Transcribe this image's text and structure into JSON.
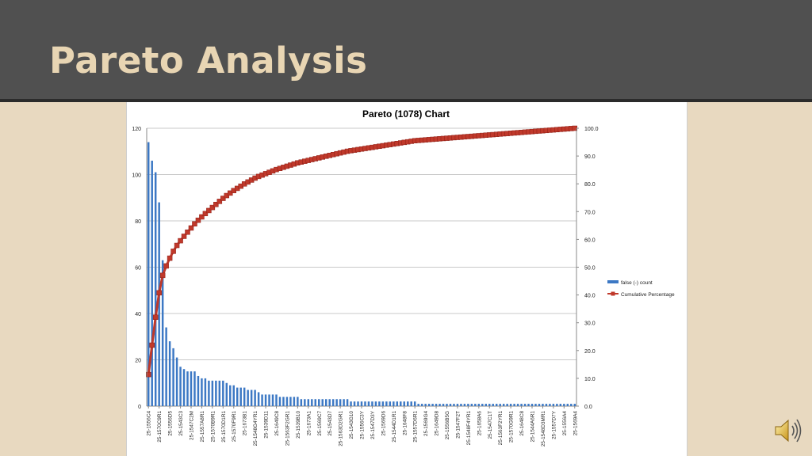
{
  "slide": {
    "title": "Pareto Analysis"
  },
  "icons": {
    "audio": "speaker-icon"
  },
  "colors": {
    "bar": "#3c78c4",
    "line": "#c0392b",
    "header": "#505050",
    "background": "#e8d9c0",
    "title": "#e8d5b3"
  },
  "chart_data": {
    "type": "bar",
    "title": "Pareto (1078) Chart",
    "ylim": [
      0,
      120
    ],
    "y_ticks": [
      "0",
      "20",
      "40",
      "60",
      "80",
      "100",
      "120"
    ],
    "y2lim": [
      0,
      100
    ],
    "y2_ticks": [
      "0.0",
      "10.0",
      "20.0",
      "30.0",
      "40.0",
      "50.0",
      "60.0",
      "70.0",
      "80.0",
      "90.0",
      "100.0"
    ],
    "grid": true,
    "legend_position": "right",
    "x_tick_labels": [
      "25-1556C4",
      "25-1570C9R1",
      "25-1556D5",
      "25-1543C3",
      "25-1547C2M",
      "25-1557A8R1",
      "25-1570B9R1",
      "25-1570D1R1",
      "25-1570F9R1",
      "25-1673B1",
      "25-1548G4YR1",
      "25-1539D11",
      "25-1649C8",
      "25-1563F2GR1",
      "25-1539B10",
      "25-1673A1",
      "25-1569C7",
      "25-1543D7",
      "25-1563D2GR1",
      "25-1543G10",
      "25-1556C3Y",
      "25-1547D3Y",
      "25-1569D6",
      "25-1544D1R1",
      "25-1648F8",
      "25-1557D6R1",
      "25-1569G4",
      "25-1649D8",
      "25-1556B5G",
      "25-1547F2T",
      "25-1548F4YR1",
      "25-1658A6",
      "25-1547C1T",
      "25-1563F2YR1",
      "25-1570G9R1",
      "25-1648C8",
      "25-1544A6R1",
      "25-1548D3MR1",
      "25-1557D7Y",
      "25-1556A4",
      "25-1569A4"
    ],
    "series": [
      {
        "name": "false (-) count",
        "type": "bar",
        "values": [
          114,
          106,
          101,
          88,
          63,
          34,
          28,
          25,
          21,
          17,
          16,
          15,
          15,
          15,
          13,
          12,
          12,
          11,
          11,
          11,
          11,
          11,
          10,
          9,
          9,
          8,
          8,
          8,
          7,
          7,
          7,
          6,
          5,
          5,
          5,
          5,
          5,
          4,
          4,
          4,
          4,
          4,
          4,
          3,
          3,
          3,
          3,
          3,
          3,
          3,
          3,
          3,
          3,
          3,
          3,
          3,
          3,
          2,
          2,
          2,
          2,
          2,
          2,
          2,
          2,
          2,
          2,
          2,
          2,
          2,
          2,
          2,
          2,
          2,
          2,
          2,
          1,
          1,
          1,
          1,
          1,
          1,
          1,
          1,
          1,
          1,
          1,
          1,
          1,
          1,
          1,
          1,
          1,
          1,
          1,
          1,
          1,
          1,
          1,
          1,
          1,
          1,
          1,
          1,
          1,
          1,
          1,
          1,
          1,
          1,
          1,
          1,
          1,
          1,
          1,
          1,
          1,
          1,
          1,
          1,
          1
        ]
      },
      {
        "name": "Cumulative Percentage",
        "type": "line"
      }
    ]
  }
}
